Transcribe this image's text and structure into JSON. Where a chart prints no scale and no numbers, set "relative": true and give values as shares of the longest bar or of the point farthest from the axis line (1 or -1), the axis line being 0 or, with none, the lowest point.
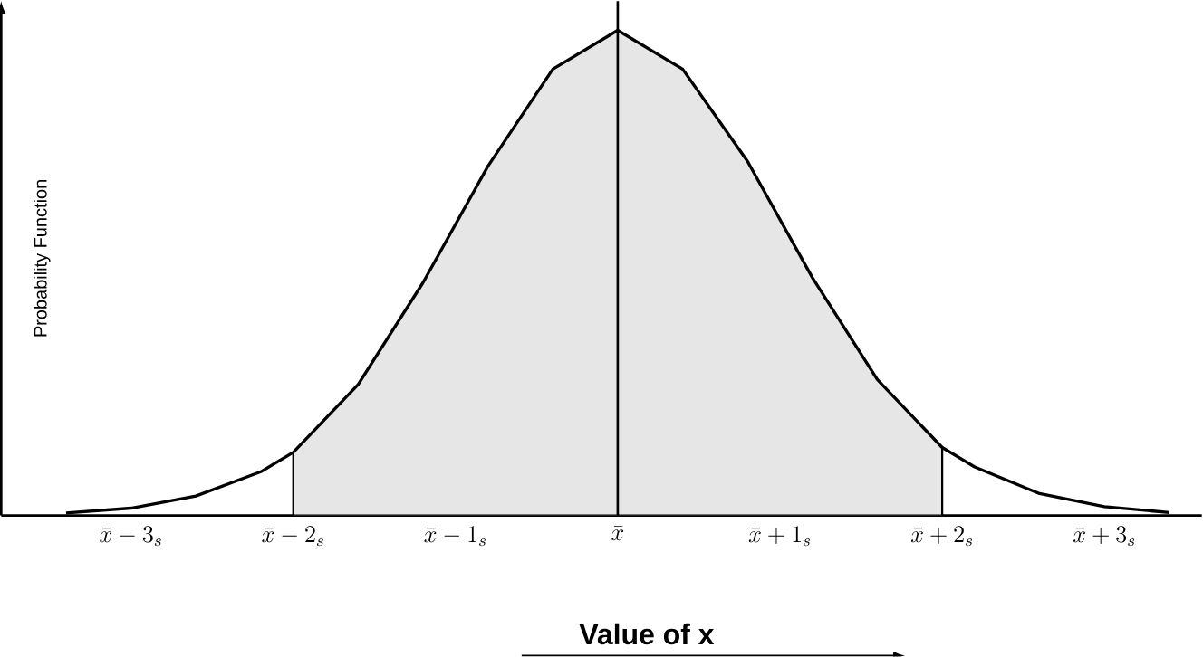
{
  "chart_data": {
    "type": "line",
    "relative": true,
    "xlabel": "**Value of x**",
    "ylabel": "Probability Function",
    "xlim": [
      -3.8,
      3.6
    ],
    "xticks": [
      {
        "value": -3,
        "label": "\\bar{x}-3_{s}"
      },
      {
        "value": -2,
        "label": "\\bar{x}-2_{s}"
      },
      {
        "value": -1,
        "label": "\\bar{x}-1_{s}"
      },
      {
        "value": 0,
        "label": "\\bar{x}"
      },
      {
        "value": 1,
        "label": "\\bar{x}+1_{s}"
      },
      {
        "value": 2,
        "label": "\\bar{x}+2_{s}"
      },
      {
        "value": 3,
        "label": "\\bar{x}+3_{s}"
      }
    ],
    "series": [
      {
        "color": "#000000",
        "x": [
          -3.4,
          -3.0,
          -2.6,
          -2.2,
          -2.0,
          -1.6,
          -1.2,
          -0.8,
          -0.4,
          0,
          0.4,
          0.8,
          1.2,
          1.6,
          2.0,
          2.2,
          2.6,
          3.0,
          3.4
        ],
        "values": [
          0.005,
          0.015,
          0.04,
          0.09,
          0.13,
          0.27,
          0.48,
          0.72,
          0.92,
          1,
          0.92,
          0.73,
          0.49,
          0.28,
          0.14,
          0.1,
          0.045,
          0.018,
          0.006
        ]
      }
    ],
    "bands": [
      {
        "axis": "x",
        "from": -2,
        "to": 2,
        "color": "#e6e6e6"
      }
    ],
    "ref_lines": [
      {
        "axis": "x",
        "value": 0
      }
    ]
  }
}
